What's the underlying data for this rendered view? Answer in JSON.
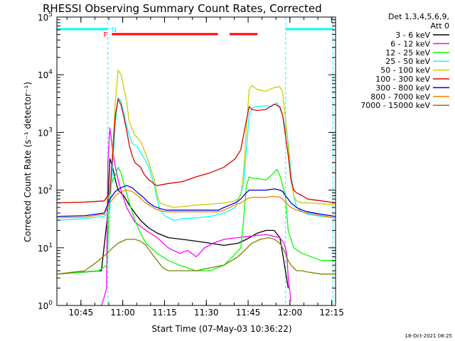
{
  "chart_data": {
    "type": "line",
    "title": "RHESSI Observing Summary Count Rates, Corrected",
    "xlabel": "Start Time (07-May-03 10:36:22)",
    "ylabel": "Corrected Count Rate (s⁻¹ detector⁻¹)",
    "x_unit": "minutes after 10:36:22",
    "xlim": [
      0,
      100
    ],
    "ylim": [
      1,
      100000
    ],
    "yscale": "log",
    "x_ticks": [
      {
        "v": 8.63,
        "label": "10:45"
      },
      {
        "v": 23.63,
        "label": "11:00"
      },
      {
        "v": 38.63,
        "label": "11:15"
      },
      {
        "v": 53.63,
        "label": "11:30"
      },
      {
        "v": 68.63,
        "label": "11:45"
      },
      {
        "v": 83.63,
        "label": "12:00"
      },
      {
        "v": 98.63,
        "label": "12:15"
      }
    ],
    "y_ticks": [
      {
        "v": 1,
        "base": "10",
        "exp": "0"
      },
      {
        "v": 10,
        "base": "10",
        "exp": "1"
      },
      {
        "v": 100,
        "base": "10",
        "exp": "2"
      },
      {
        "v": 1000,
        "base": "10",
        "exp": "3"
      },
      {
        "v": 10000,
        "base": "10",
        "exp": "4"
      },
      {
        "v": 100000,
        "base": "10",
        "exp": "5"
      }
    ],
    "vlines": [
      18.3,
      82.1,
      99.0
    ],
    "night_flag": {
      "label": "N",
      "segments": [
        [
          0,
          18.3
        ],
        [
          82.1,
          99.0
        ]
      ],
      "color": "#00FFFF",
      "label_x": 20.5
    },
    "saa_flag": {
      "label": "F",
      "segments": [
        [
          19.7,
          57.8
        ],
        [
          62.0,
          72.0
        ]
      ],
      "color": "#FF0000",
      "label_x": 17.4
    },
    "legend_header": [
      "Det 1,3,4,5,6,9,",
      "Att 0"
    ],
    "series": [
      {
        "name": "3 - 6 keV",
        "color": "#000000",
        "x": [
          0,
          16,
          18,
          19,
          20,
          21,
          22,
          24,
          26,
          28,
          30,
          33,
          36,
          40,
          45,
          50,
          55,
          60,
          65,
          68,
          72,
          75,
          78,
          80,
          81,
          82,
          83
        ],
        "y": [
          3.5,
          4,
          30,
          350,
          250,
          150,
          100,
          80,
          55,
          40,
          30,
          22,
          18,
          15,
          14,
          13,
          12,
          11,
          12,
          14,
          18,
          20,
          20,
          15,
          8,
          4,
          2
        ]
      },
      {
        "name": "6 - 12 keV",
        "color": "#FF00FF",
        "x": [
          16,
          17,
          17.8,
          18.3,
          19,
          20,
          21,
          22,
          23,
          25,
          28,
          32,
          36,
          40,
          44,
          47,
          50,
          53,
          56,
          60,
          65,
          70,
          75,
          80,
          81.5,
          82.5,
          83,
          84
        ],
        "y": [
          1,
          1.4,
          2,
          300,
          1200,
          500,
          250,
          150,
          100,
          50,
          28,
          20,
          15,
          10,
          8,
          9,
          7,
          10,
          12,
          14,
          15,
          16,
          17,
          15,
          12,
          8,
          3,
          1.2
        ]
      },
      {
        "name": "12 - 25 keV",
        "color": "#00FF00",
        "x": [
          0,
          15,
          18,
          19,
          20,
          21,
          22,
          23,
          24,
          25,
          26,
          28,
          30,
          32,
          36,
          40,
          44,
          50,
          55,
          60,
          63,
          66,
          67,
          68,
          69,
          70,
          72,
          75,
          77,
          79,
          80,
          82,
          83,
          85,
          88,
          95,
          100
        ],
        "y": [
          3.5,
          4,
          5,
          100,
          150,
          180,
          250,
          200,
          130,
          90,
          60,
          30,
          18,
          12,
          8,
          6,
          5,
          4,
          4,
          5,
          7,
          10,
          30,
          120,
          170,
          160,
          160,
          150,
          180,
          230,
          180,
          80,
          20,
          10,
          8,
          6,
          6
        ]
      },
      {
        "name": "25 - 50 keV",
        "color": "#00FFFF",
        "x": [
          0,
          10,
          17,
          19,
          20,
          21,
          22,
          23,
          24,
          25,
          26,
          27,
          28,
          29,
          30,
          31,
          33,
          35,
          36,
          37,
          39,
          42,
          45,
          50,
          55,
          60,
          64,
          67,
          68,
          69,
          70,
          71,
          75,
          77,
          79,
          80,
          81,
          83,
          84,
          85,
          86,
          88,
          90,
          95,
          100
        ],
        "y": [
          30,
          32,
          35,
          45,
          250,
          1500,
          4000,
          3500,
          2200,
          1300,
          900,
          650,
          600,
          550,
          450,
          380,
          250,
          120,
          70,
          45,
          35,
          30,
          32,
          33,
          35,
          40,
          50,
          120,
          500,
          2000,
          2600,
          2800,
          2900,
          2800,
          3300,
          2600,
          2000,
          700,
          200,
          80,
          50,
          42,
          38,
          35,
          33
        ]
      },
      {
        "name": "50 - 100 keV",
        "color": "#CCCC00",
        "x": [
          0,
          10,
          17,
          19,
          20,
          21,
          22,
          23,
          24,
          25,
          26,
          28,
          29,
          30,
          31,
          33,
          35,
          36,
          37,
          39,
          42,
          45,
          50,
          55,
          60,
          64,
          66,
          67,
          68,
          69,
          70,
          72,
          75,
          78,
          80,
          81,
          83,
          84,
          85,
          86,
          88,
          90,
          95,
          100
        ],
        "y": [
          60,
          62,
          65,
          80,
          500,
          3500,
          12000,
          10000,
          6000,
          3500,
          1500,
          900,
          800,
          700,
          550,
          300,
          150,
          80,
          60,
          55,
          50,
          52,
          55,
          57,
          60,
          65,
          80,
          200,
          1200,
          5500,
          6500,
          5500,
          5200,
          6000,
          6200,
          5000,
          600,
          150,
          80,
          65,
          60,
          60,
          58,
          55
        ]
      },
      {
        "name": "100 - 300 keV",
        "color": "#DD0000",
        "x": [
          0,
          10,
          17,
          19,
          20,
          21,
          22,
          23,
          24,
          25,
          26,
          27,
          28,
          30,
          31,
          32,
          33,
          34,
          35,
          36,
          40,
          45,
          50,
          55,
          60,
          64,
          66,
          67,
          68,
          69,
          70,
          72,
          75,
          78,
          80,
          81,
          83,
          84,
          85,
          86,
          88,
          90,
          95,
          100
        ],
        "y": [
          60,
          62,
          65,
          90,
          400,
          2000,
          3800,
          3000,
          1900,
          1100,
          600,
          400,
          300,
          250,
          200,
          170,
          150,
          140,
          125,
          120,
          130,
          140,
          170,
          200,
          250,
          350,
          500,
          900,
          1600,
          2800,
          2500,
          2400,
          2500,
          3100,
          2800,
          2000,
          400,
          150,
          100,
          90,
          80,
          70,
          65,
          60
        ]
      },
      {
        "name": "300 - 800 keV",
        "color": "#0000DD",
        "x": [
          0,
          10,
          17,
          19,
          21,
          23,
          25,
          27,
          29,
          31,
          33,
          35,
          37,
          39,
          42,
          45,
          50,
          55,
          58,
          60,
          62,
          64,
          66,
          67,
          68,
          69,
          70,
          72,
          75,
          78,
          80,
          81,
          82,
          83,
          84,
          86,
          88,
          90,
          95,
          100
        ],
        "y": [
          35,
          36,
          40,
          70,
          95,
          110,
          120,
          110,
          90,
          75,
          60,
          52,
          48,
          45,
          45,
          45,
          45,
          45,
          45,
          50,
          55,
          60,
          70,
          80,
          90,
          100,
          100,
          100,
          100,
          105,
          100,
          95,
          80,
          70,
          60,
          50,
          45,
          42,
          38,
          35
        ]
      },
      {
        "name": "800 - 7000 keV",
        "color": "#FF8000",
        "x": [
          0,
          10,
          17,
          19,
          21,
          23,
          25,
          27,
          29,
          31,
          33,
          35,
          37,
          39,
          42,
          45,
          50,
          55,
          58,
          60,
          62,
          64,
          66,
          68,
          70,
          72,
          75,
          78,
          80,
          81,
          82,
          83,
          84,
          86,
          88,
          90,
          95,
          100
        ],
        "y": [
          33,
          34,
          38,
          60,
          80,
          95,
          100,
          95,
          80,
          65,
          55,
          48,
          44,
          42,
          42,
          42,
          42,
          42,
          42,
          45,
          50,
          55,
          60,
          70,
          75,
          75,
          75,
          78,
          75,
          70,
          62,
          55,
          50,
          45,
          42,
          40,
          36,
          33
        ]
      },
      {
        "name": "7000 - 15000 keV",
        "color": "#808000",
        "x": [
          0,
          10,
          15,
          18,
          20,
          22,
          25,
          28,
          30,
          32,
          34,
          36,
          38,
          40,
          45,
          50,
          55,
          60,
          65,
          70,
          73,
          76,
          78,
          80,
          81,
          82,
          83,
          84,
          85,
          86,
          88,
          90,
          95,
          100
        ],
        "y": [
          3.5,
          4,
          6,
          8,
          10,
          12,
          14,
          14,
          13,
          11,
          8,
          6,
          4.5,
          4,
          4,
          4,
          4.5,
          5,
          7,
          12,
          14,
          15,
          14,
          12,
          10,
          8,
          6,
          5,
          4.5,
          4,
          4,
          3.8,
          3.5,
          3.5
        ]
      }
    ]
  },
  "footer": {
    "timestamp": "18-Oct-2021 08:25"
  }
}
